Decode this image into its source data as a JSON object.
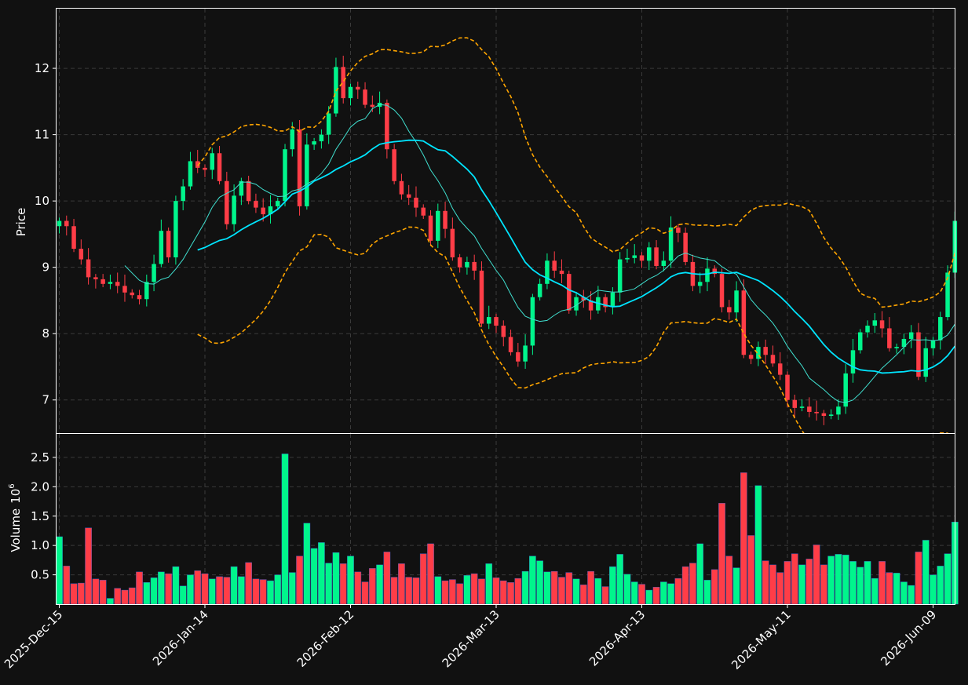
{
  "chart_data": {
    "type": "candlestick",
    "colors": {
      "background": "#111111",
      "up": "#00f58c",
      "down": "#ff3d47",
      "ma_fast": "#40e0d0",
      "ma_slow": "#00e5ff",
      "bands": "#ffa500",
      "grid": "#3a3a3a",
      "frame": "#ffffff",
      "text": "#ffffff"
    },
    "x_ticks": [
      {
        "i": 0,
        "label": "2025-Dec-15"
      },
      {
        "i": 20,
        "label": "2026-Jan-14"
      },
      {
        "i": 40,
        "label": "2026-Feb-12"
      },
      {
        "i": 60,
        "label": "2026-Mar-13"
      },
      {
        "i": 80,
        "label": "2026-Apr-13"
      },
      {
        "i": 100,
        "label": "2026-May-11"
      },
      {
        "i": 120,
        "label": "2026-Jun-09"
      }
    ],
    "price_panel": {
      "ylabel": "Price",
      "ylim": [
        6.5,
        12.9
      ],
      "yticks": [
        7,
        8,
        9,
        10,
        11,
        12
      ]
    },
    "volume_panel": {
      "ylabel": "Volume",
      "unit_label": "10",
      "unit_exp": "6",
      "ylim": [
        0,
        2.9
      ],
      "yticks": [
        0.5,
        1.0,
        1.5,
        2.0,
        2.5
      ],
      "ytick_labels": [
        "0.5",
        "1.0",
        "1.5",
        "2.0",
        "2.5"
      ]
    },
    "close": [
      9.7,
      9.62,
      9.28,
      9.12,
      8.85,
      8.82,
      8.75,
      8.78,
      8.72,
      8.62,
      8.58,
      8.52,
      8.78,
      9.05,
      9.55,
      9.15,
      10.0,
      10.22,
      10.6,
      10.5,
      10.47,
      10.72,
      10.3,
      9.65,
      10.08,
      10.3,
      10.0,
      9.9,
      9.8,
      9.92,
      10.0,
      10.78,
      11.08,
      9.92,
      10.85,
      10.9,
      11.0,
      11.32,
      12.02,
      11.55,
      11.72,
      11.68,
      11.45,
      11.42,
      11.48,
      10.78,
      10.3,
      10.1,
      10.05,
      9.9,
      9.78,
      9.4,
      9.85,
      9.58,
      9.15,
      9.0,
      9.08,
      8.95,
      8.15,
      8.25,
      8.12,
      7.95,
      7.72,
      7.58,
      7.82,
      8.55,
      8.75,
      9.1,
      8.95,
      8.9,
      8.35,
      8.55,
      8.5,
      8.35,
      8.55,
      8.4,
      8.62,
      9.12,
      9.14,
      9.18,
      9.1,
      9.3,
      9.02,
      9.1,
      9.6,
      9.52,
      9.08,
      8.72,
      8.78,
      8.98,
      8.9,
      8.4,
      8.32,
      8.65,
      7.68,
      7.62,
      7.8,
      7.68,
      7.55,
      7.38,
      7.0,
      6.88,
      6.9,
      6.82,
      6.8,
      6.76,
      6.78,
      6.9,
      7.4,
      7.75,
      8.02,
      8.12,
      8.2,
      8.08,
      7.78,
      7.8,
      7.92,
      8.02,
      7.35,
      7.78,
      7.9,
      8.25,
      8.92,
      9.7
    ],
    "volume": [
      1.15,
      0.65,
      0.35,
      0.36,
      1.3,
      0.43,
      0.41,
      0.1,
      0.27,
      0.24,
      0.28,
      0.55,
      0.37,
      0.45,
      0.55,
      0.52,
      0.64,
      0.31,
      0.5,
      0.57,
      0.52,
      0.43,
      0.47,
      0.46,
      0.64,
      0.47,
      0.71,
      0.43,
      0.42,
      0.4,
      0.5,
      2.56,
      0.54,
      0.82,
      1.38,
      0.95,
      1.05,
      0.7,
      0.88,
      0.69,
      0.82,
      0.55,
      0.38,
      0.61,
      0.67,
      0.89,
      0.46,
      0.69,
      0.46,
      0.45,
      0.86,
      1.03,
      0.47,
      0.4,
      0.42,
      0.35,
      0.49,
      0.52,
      0.43,
      0.69,
      0.45,
      0.4,
      0.37,
      0.44,
      0.56,
      0.82,
      0.74,
      0.55,
      0.56,
      0.46,
      0.54,
      0.43,
      0.33,
      0.56,
      0.44,
      0.3,
      0.64,
      0.85,
      0.51,
      0.38,
      0.34,
      0.24,
      0.29,
      0.38,
      0.35,
      0.44,
      0.64,
      0.7,
      1.03,
      0.41,
      0.59,
      1.72,
      0.82,
      0.62,
      2.24,
      1.17,
      2.02,
      0.74,
      0.67,
      0.54,
      0.73,
      0.86,
      0.67,
      0.77,
      1.01,
      0.67,
      0.82,
      0.85,
      0.84,
      0.73,
      0.63,
      0.73,
      0.44,
      0.73,
      0.54,
      0.53,
      0.38,
      0.32,
      0.89,
      1.09,
      0.5,
      0.65,
      0.86,
      1.4
    ]
  }
}
